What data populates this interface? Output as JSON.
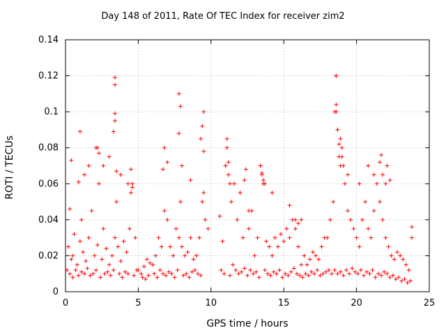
{
  "chart_data": {
    "type": "scatter",
    "title": "Day 148 of 2011, Rate Of TEC Index for receiver zim2",
    "xlabel": "GPS time / hours",
    "ylabel": "ROTI / TECUs",
    "xlim": [
      0,
      25
    ],
    "ylim": [
      0,
      0.14
    ],
    "xticks": [
      0,
      5,
      10,
      15,
      20,
      25
    ],
    "yticks": [
      0,
      0.02,
      0.04,
      0.06,
      0.08,
      0.1,
      0.12,
      0.14
    ],
    "xtick_labels": [
      "0",
      "5",
      "10",
      "15",
      "20",
      "25"
    ],
    "ytick_labels": [
      "0",
      "0.02",
      "0.04",
      "0.06",
      "0.08",
      "0.1",
      "0.12",
      "0.14"
    ],
    "grid": true,
    "marker": "+",
    "color": "#ff0000",
    "series": [
      {
        "name": "ROTI",
        "x": [
          0.1,
          0.2,
          0.3,
          0.4,
          0.5,
          0.6,
          0.8,
          1.0,
          1.1,
          1.2,
          1.4,
          1.6,
          1.8,
          2.0,
          2.2,
          2.3,
          2.5,
          2.6,
          2.8,
          3.0,
          3.2,
          3.4,
          3.5,
          3.6,
          3.8,
          4.0,
          4.2,
          4.4,
          4.5,
          4.6,
          4.8,
          5.0,
          5.2,
          5.4,
          5.6,
          5.8,
          6.0,
          6.2,
          6.4,
          6.6,
          6.8,
          7.0,
          7.2,
          7.4,
          7.6,
          7.8,
          7.9,
          8.0,
          8.2,
          8.4,
          8.6,
          8.8,
          9.0,
          9.2,
          9.4,
          9.5,
          9.6,
          9.8,
          0.3,
          0.5,
          0.7,
          0.9,
          1.1,
          1.3,
          1.5,
          1.7,
          1.9,
          2.1,
          2.4,
          2.7,
          2.9,
          3.1,
          3.3,
          3.7,
          3.9,
          4.1,
          4.3,
          4.7,
          4.9,
          5.3,
          5.5,
          5.7,
          6.1,
          6.3,
          6.5,
          6.7,
          6.9,
          7.1,
          7.3,
          7.5,
          7.7,
          8.1,
          8.3,
          8.5,
          8.7,
          8.9,
          9.1,
          9.3,
          0.4,
          0.9,
          1.3,
          1.6,
          2.1,
          2.3,
          2.6,
          3.0,
          3.4,
          3.4,
          3.5,
          3.8,
          4.3,
          4.5,
          4.6,
          6.7,
          6.8,
          7.0,
          7.8,
          7.9,
          8.0,
          8.6,
          9.3,
          9.4,
          9.5,
          1.0,
          2.2,
          3.4,
          3.4,
          7.8,
          9.5,
          3.3,
          10.6,
          10.8,
          11.0,
          11.1,
          11.2,
          11.4,
          11.6,
          11.8,
          12.0,
          12.2,
          12.4,
          12.6,
          12.8,
          13.0,
          13.2,
          13.4,
          13.5,
          13.6,
          13.8,
          14.0,
          14.2,
          14.4,
          14.6,
          14.8,
          15.0,
          15.2,
          15.4,
          15.6,
          15.8,
          16.0,
          16.2,
          16.4,
          16.6,
          16.8,
          17.0,
          17.2,
          17.4,
          17.6,
          17.8,
          18.0,
          18.2,
          18.4,
          10.7,
          10.9,
          11.3,
          11.5,
          11.7,
          11.9,
          12.1,
          12.3,
          12.5,
          12.7,
          12.9,
          13.1,
          13.3,
          13.7,
          13.9,
          14.1,
          14.3,
          14.5,
          14.7,
          14.9,
          15.1,
          15.3,
          15.5,
          15.7,
          15.9,
          16.1,
          16.3,
          16.5,
          16.7,
          16.9,
          17.1,
          17.3,
          17.5,
          17.7,
          17.9,
          18.1,
          18.3,
          11.0,
          11.1,
          11.2,
          11.3,
          12.3,
          12.6,
          13.4,
          13.5,
          13.6,
          13.7,
          14.2,
          15.4,
          15.8,
          16.0,
          16.2,
          18.5,
          18.6,
          18.6,
          18.7,
          18.8,
          18.9,
          19.0,
          19.2,
          19.4,
          19.6,
          19.8,
          20.0,
          20.2,
          20.4,
          20.6,
          20.8,
          21.0,
          21.2,
          21.4,
          21.6,
          21.8,
          22.0,
          22.2,
          22.4,
          22.6,
          22.8,
          23.0,
          23.2,
          23.4,
          23.6,
          23.8,
          18.5,
          18.7,
          18.9,
          19.1,
          19.3,
          19.5,
          19.7,
          19.9,
          20.1,
          20.3,
          20.5,
          20.7,
          20.9,
          21.1,
          21.3,
          21.5,
          21.7,
          21.9,
          22.1,
          22.3,
          22.5,
          22.7,
          22.9,
          23.1,
          23.3,
          23.5,
          23.7,
          18.6,
          18.6,
          18.7,
          18.8,
          18.9,
          19.0,
          19.1,
          19.4,
          20.2,
          20.8,
          21.2,
          21.6,
          21.7,
          21.8,
          22.0,
          22.1,
          22.3,
          23.8
        ],
        "y": [
          0.012,
          0.025,
          0.046,
          0.018,
          0.02,
          0.032,
          0.015,
          0.028,
          0.04,
          0.022,
          0.017,
          0.03,
          0.045,
          0.02,
          0.026,
          0.06,
          0.018,
          0.035,
          0.024,
          0.015,
          0.02,
          0.03,
          0.05,
          0.025,
          0.017,
          0.028,
          0.022,
          0.035,
          0.055,
          0.06,
          0.03,
          0.012,
          0.01,
          0.014,
          0.018,
          0.016,
          0.015,
          0.02,
          0.03,
          0.025,
          0.045,
          0.04,
          0.025,
          0.02,
          0.035,
          0.03,
          0.05,
          0.025,
          0.02,
          0.022,
          0.03,
          0.018,
          0.02,
          0.03,
          0.05,
          0.055,
          0.04,
          0.035,
          0.01,
          0.008,
          0.012,
          0.009,
          0.011,
          0.01,
          0.013,
          0.009,
          0.01,
          0.012,
          0.008,
          0.01,
          0.011,
          0.009,
          0.012,
          0.01,
          0.008,
          0.011,
          0.01,
          0.009,
          0.012,
          0.008,
          0.007,
          0.009,
          0.01,
          0.008,
          0.012,
          0.01,
          0.009,
          0.011,
          0.01,
          0.008,
          0.012,
          0.009,
          0.01,
          0.008,
          0.011,
          0.012,
          0.01,
          0.009,
          0.073,
          0.061,
          0.065,
          0.07,
          0.08,
          0.077,
          0.07,
          0.075,
          0.099,
          0.095,
          0.067,
          0.065,
          0.06,
          0.068,
          0.058,
          0.068,
          0.08,
          0.072,
          0.088,
          0.103,
          0.07,
          0.062,
          0.085,
          0.092,
          0.078,
          0.089,
          0.08,
          0.119,
          0.115,
          0.11,
          0.1,
          0.089,
          0.042,
          0.028,
          0.07,
          0.085,
          0.065,
          0.05,
          0.06,
          0.04,
          0.055,
          0.03,
          0.068,
          0.035,
          0.045,
          0.02,
          0.03,
          0.07,
          0.065,
          0.06,
          0.028,
          0.025,
          0.02,
          0.03,
          0.025,
          0.032,
          0.028,
          0.035,
          0.03,
          0.04,
          0.035,
          0.025,
          0.015,
          0.02,
          0.015,
          0.018,
          0.022,
          0.02,
          0.018,
          0.025,
          0.03,
          0.03,
          0.04,
          0.05,
          0.012,
          0.01,
          0.009,
          0.015,
          0.012,
          0.01,
          0.011,
          0.013,
          0.009,
          0.012,
          0.01,
          0.011,
          0.008,
          0.012,
          0.01,
          0.009,
          0.011,
          0.01,
          0.012,
          0.008,
          0.01,
          0.009,
          0.011,
          0.013,
          0.01,
          0.009,
          0.008,
          0.01,
          0.009,
          0.011,
          0.01,
          0.012,
          0.009,
          0.01,
          0.011,
          0.012,
          0.01,
          0.07,
          0.08,
          0.072,
          0.06,
          0.062,
          0.045,
          0.07,
          0.066,
          0.062,
          0.06,
          0.055,
          0.048,
          0.04,
          0.038,
          0.04,
          0.1,
          0.12,
          0.104,
          0.09,
          0.075,
          0.07,
          0.08,
          0.06,
          0.045,
          0.04,
          0.035,
          0.03,
          0.025,
          0.04,
          0.05,
          0.035,
          0.03,
          0.045,
          0.06,
          0.05,
          0.04,
          0.03,
          0.025,
          0.02,
          0.018,
          0.022,
          0.02,
          0.018,
          0.015,
          0.012,
          0.036,
          0.012,
          0.01,
          0.011,
          0.009,
          0.012,
          0.01,
          0.013,
          0.011,
          0.01,
          0.012,
          0.009,
          0.011,
          0.01,
          0.012,
          0.008,
          0.01,
          0.009,
          0.011,
          0.01,
          0.008,
          0.009,
          0.007,
          0.008,
          0.006,
          0.007,
          0.005,
          0.006,
          0.12,
          0.1,
          0.09,
          0.082,
          0.085,
          0.075,
          0.07,
          0.065,
          0.06,
          0.07,
          0.065,
          0.072,
          0.076,
          0.065,
          0.06,
          0.07,
          0.062,
          0.03
        ]
      }
    ]
  }
}
